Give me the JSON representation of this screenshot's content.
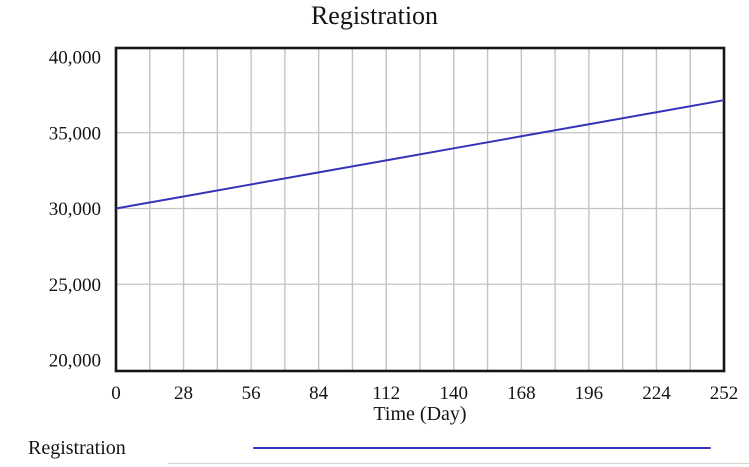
{
  "chart": {
    "title": "Registration",
    "x_axis_title": "Time (Day)"
  },
  "legend": {
    "label": "Registration",
    "line_color": "#3434b8"
  },
  "chart_data": {
    "type": "line",
    "title": "Registration",
    "xlabel": "Time (Day)",
    "ylabel": "",
    "x": [
      0,
      28,
      56,
      84,
      112,
      140,
      168,
      196,
      224,
      252
    ],
    "series": [
      {
        "name": "Registration",
        "color": "#3434b8",
        "values": [
          30000,
          30794,
          31589,
          32383,
          33178,
          33972,
          34767,
          35561,
          36356,
          37150
        ]
      }
    ],
    "xlim": [
      0,
      252
    ],
    "ylim": [
      20000,
      40000
    ],
    "x_tick_labels": [
      "0",
      "28",
      "56",
      "84",
      "112",
      "140",
      "168",
      "196",
      "224",
      "252"
    ],
    "y_tick_values": [
      20000,
      25000,
      30000,
      35000,
      40000
    ],
    "y_tick_labels": [
      "20,000",
      "25,000",
      "30,000",
      "35,000",
      "40,000"
    ],
    "h_gridline_values": [
      25000,
      30000,
      35000
    ],
    "minor_x_grid_step": 14,
    "grid": true,
    "legend_position": "bottom-left",
    "colors": {
      "grid": "#c4c4c4",
      "border": "#161616",
      "text": "#141414",
      "background": "#ffffff"
    }
  }
}
